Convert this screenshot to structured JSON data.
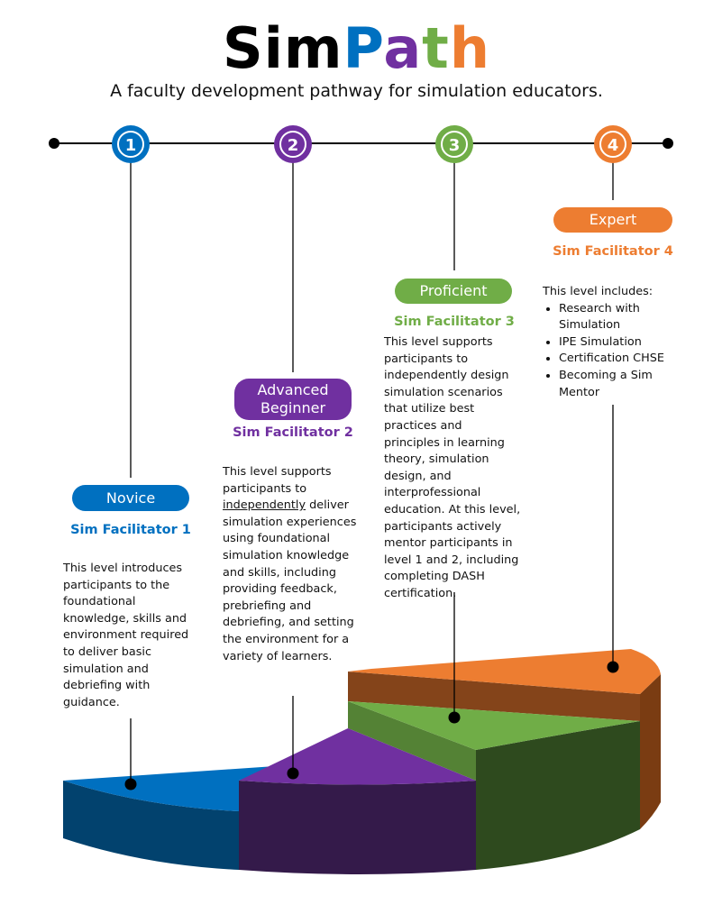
{
  "header": {
    "title_parts": [
      "Sim",
      "P",
      "a",
      "t",
      "h"
    ],
    "subtitle": "A faculty development pathway for simulation educators."
  },
  "colors": {
    "novice": "#0070c0",
    "advanced": "#7030a0",
    "proficient": "#70ad47",
    "expert": "#ed7d31"
  },
  "levels": [
    {
      "number": "1",
      "label": "Novice",
      "facilitator": "Sim Facilitator 1",
      "description": "This level introduces participants to the foundational knowledge, skills and environment required to deliver basic simulation and debriefing with guidance."
    },
    {
      "number": "2",
      "label": "Advanced Beginner",
      "facilitator": "Sim Facilitator 2",
      "description_pre": "This level supports participants to ",
      "description_emph": "independently",
      "description_post": " deliver simulation experiences using foundational simulation knowledge and skills, including providing feedback, prebriefing and debriefing, and setting the environment for a variety of learners."
    },
    {
      "number": "3",
      "label": "Proficient",
      "facilitator": "Sim Facilitator 3",
      "description": "This level supports participants to independently design simulation scenarios that utilize best practices and principles in learning theory, simulation design, and interprofessional education. At this level, participants actively mentor participants in level 1 and 2, including completing DASH certification."
    },
    {
      "number": "4",
      "label": "Expert",
      "facilitator": "Sim Facilitator 4",
      "description": "This level includes:",
      "bullets": [
        "Research with Simulation",
        "IPE Simulation",
        "Certification CHSE",
        "Becoming a Sim Mentor"
      ]
    }
  ]
}
